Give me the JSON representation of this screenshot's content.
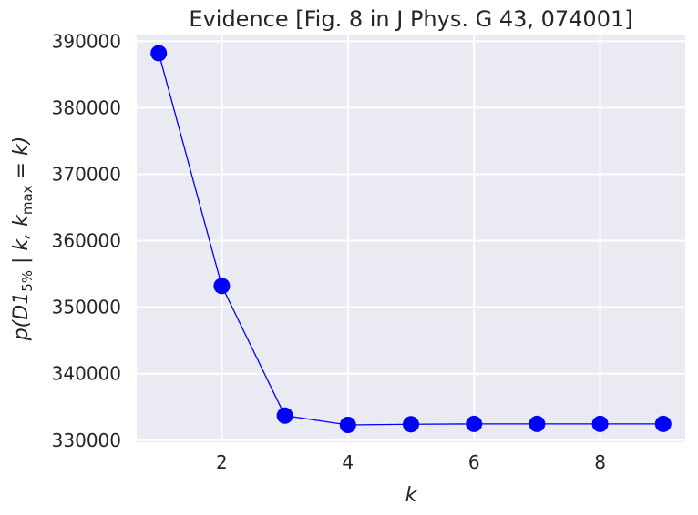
{
  "chart_data": {
    "type": "line",
    "title": "Evidence [Fig. 8 in J Phys. G 43, 074001]",
    "xlabel": "k",
    "ylabel": {
      "parts": [
        {
          "text": "p(D1",
          "style": "italic"
        },
        {
          "text": "5%",
          "style": "sub"
        },
        {
          "text": " | k, k",
          "style": "italic"
        },
        {
          "text": "max",
          "style": "sub"
        },
        {
          "text": " = k)",
          "style": "italic"
        }
      ]
    },
    "x": [
      1,
      2,
      3,
      4,
      5,
      6,
      7,
      8,
      9
    ],
    "series": [
      {
        "values": [
          388200,
          353200,
          333700,
          332300,
          332400,
          332450,
          332450,
          332450,
          332450
        ],
        "color": "#0000ff",
        "marker": "circle"
      }
    ],
    "xlim": [
      0.65,
      9.35
    ],
    "ylim": [
      329700,
      391000
    ],
    "xticks": [
      2,
      4,
      6,
      8
    ],
    "xtick_labels": [
      "2",
      "4",
      "6",
      "8"
    ],
    "yticks": [
      330000,
      340000,
      350000,
      360000,
      370000,
      380000,
      390000
    ],
    "ytick_labels": [
      "330000",
      "340000",
      "350000",
      "360000",
      "370000",
      "380000",
      "390000"
    ],
    "grid": true,
    "background": "#eaeaf2",
    "grid_color": "#ffffff"
  }
}
